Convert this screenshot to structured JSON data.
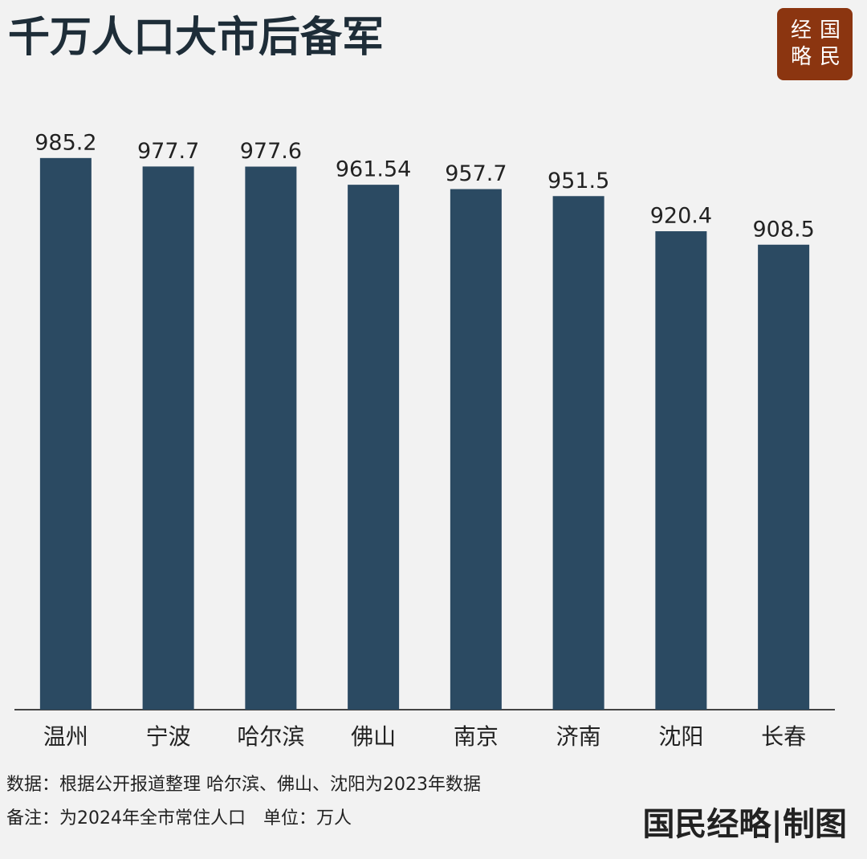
{
  "chart_data": {
    "type": "bar",
    "title": "千万人口大市后备军",
    "categories": [
      "温州",
      "宁波",
      "哈尔滨",
      "佛山",
      "南京",
      "济南",
      "沈阳",
      "长春"
    ],
    "values": [
      985.2,
      977.7,
      977.6,
      961.54,
      957.7,
      951.5,
      920.4,
      908.5
    ],
    "color": "#2b4a62",
    "ylim": [
      497,
      1000
    ],
    "notes": [
      "数据：根据公开报道整理 哈尔滨、佛山、沈阳为2023年数据",
      "备注：为2024年全市常住人口　单位：万人"
    ],
    "credit": "国民经略|制图",
    "logo": [
      "经",
      "国",
      "略",
      "民"
    ]
  }
}
